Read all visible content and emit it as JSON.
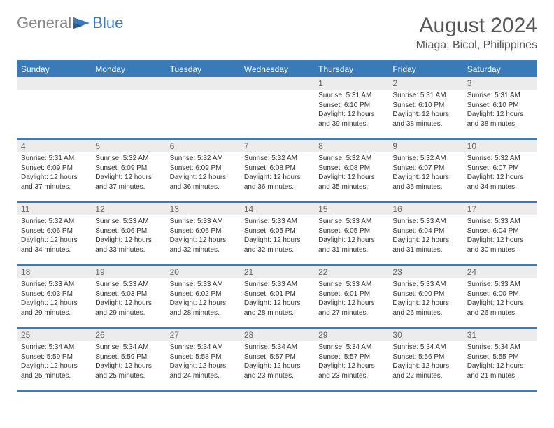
{
  "logo": {
    "gray": "General",
    "blue": "Blue"
  },
  "title": "August 2024",
  "location": "Miaga, Bicol, Philippines",
  "colors": {
    "accent": "#3a7ab8",
    "header_bg": "#3a7ab8",
    "daynum_bg": "#ececec"
  },
  "day_headers": [
    "Sunday",
    "Monday",
    "Tuesday",
    "Wednesday",
    "Thursday",
    "Friday",
    "Saturday"
  ],
  "weeks": [
    [
      null,
      null,
      null,
      null,
      {
        "n": "1",
        "sr": "Sunrise: 5:31 AM",
        "ss": "Sunset: 6:10 PM",
        "d1": "Daylight: 12 hours",
        "d2": "and 39 minutes."
      },
      {
        "n": "2",
        "sr": "Sunrise: 5:31 AM",
        "ss": "Sunset: 6:10 PM",
        "d1": "Daylight: 12 hours",
        "d2": "and 38 minutes."
      },
      {
        "n": "3",
        "sr": "Sunrise: 5:31 AM",
        "ss": "Sunset: 6:10 PM",
        "d1": "Daylight: 12 hours",
        "d2": "and 38 minutes."
      }
    ],
    [
      {
        "n": "4",
        "sr": "Sunrise: 5:31 AM",
        "ss": "Sunset: 6:09 PM",
        "d1": "Daylight: 12 hours",
        "d2": "and 37 minutes."
      },
      {
        "n": "5",
        "sr": "Sunrise: 5:32 AM",
        "ss": "Sunset: 6:09 PM",
        "d1": "Daylight: 12 hours",
        "d2": "and 37 minutes."
      },
      {
        "n": "6",
        "sr": "Sunrise: 5:32 AM",
        "ss": "Sunset: 6:09 PM",
        "d1": "Daylight: 12 hours",
        "d2": "and 36 minutes."
      },
      {
        "n": "7",
        "sr": "Sunrise: 5:32 AM",
        "ss": "Sunset: 6:08 PM",
        "d1": "Daylight: 12 hours",
        "d2": "and 36 minutes."
      },
      {
        "n": "8",
        "sr": "Sunrise: 5:32 AM",
        "ss": "Sunset: 6:08 PM",
        "d1": "Daylight: 12 hours",
        "d2": "and 35 minutes."
      },
      {
        "n": "9",
        "sr": "Sunrise: 5:32 AM",
        "ss": "Sunset: 6:07 PM",
        "d1": "Daylight: 12 hours",
        "d2": "and 35 minutes."
      },
      {
        "n": "10",
        "sr": "Sunrise: 5:32 AM",
        "ss": "Sunset: 6:07 PM",
        "d1": "Daylight: 12 hours",
        "d2": "and 34 minutes."
      }
    ],
    [
      {
        "n": "11",
        "sr": "Sunrise: 5:32 AM",
        "ss": "Sunset: 6:06 PM",
        "d1": "Daylight: 12 hours",
        "d2": "and 34 minutes."
      },
      {
        "n": "12",
        "sr": "Sunrise: 5:33 AM",
        "ss": "Sunset: 6:06 PM",
        "d1": "Daylight: 12 hours",
        "d2": "and 33 minutes."
      },
      {
        "n": "13",
        "sr": "Sunrise: 5:33 AM",
        "ss": "Sunset: 6:06 PM",
        "d1": "Daylight: 12 hours",
        "d2": "and 32 minutes."
      },
      {
        "n": "14",
        "sr": "Sunrise: 5:33 AM",
        "ss": "Sunset: 6:05 PM",
        "d1": "Daylight: 12 hours",
        "d2": "and 32 minutes."
      },
      {
        "n": "15",
        "sr": "Sunrise: 5:33 AM",
        "ss": "Sunset: 6:05 PM",
        "d1": "Daylight: 12 hours",
        "d2": "and 31 minutes."
      },
      {
        "n": "16",
        "sr": "Sunrise: 5:33 AM",
        "ss": "Sunset: 6:04 PM",
        "d1": "Daylight: 12 hours",
        "d2": "and 31 minutes."
      },
      {
        "n": "17",
        "sr": "Sunrise: 5:33 AM",
        "ss": "Sunset: 6:04 PM",
        "d1": "Daylight: 12 hours",
        "d2": "and 30 minutes."
      }
    ],
    [
      {
        "n": "18",
        "sr": "Sunrise: 5:33 AM",
        "ss": "Sunset: 6:03 PM",
        "d1": "Daylight: 12 hours",
        "d2": "and 29 minutes."
      },
      {
        "n": "19",
        "sr": "Sunrise: 5:33 AM",
        "ss": "Sunset: 6:03 PM",
        "d1": "Daylight: 12 hours",
        "d2": "and 29 minutes."
      },
      {
        "n": "20",
        "sr": "Sunrise: 5:33 AM",
        "ss": "Sunset: 6:02 PM",
        "d1": "Daylight: 12 hours",
        "d2": "and 28 minutes."
      },
      {
        "n": "21",
        "sr": "Sunrise: 5:33 AM",
        "ss": "Sunset: 6:01 PM",
        "d1": "Daylight: 12 hours",
        "d2": "and 28 minutes."
      },
      {
        "n": "22",
        "sr": "Sunrise: 5:33 AM",
        "ss": "Sunset: 6:01 PM",
        "d1": "Daylight: 12 hours",
        "d2": "and 27 minutes."
      },
      {
        "n": "23",
        "sr": "Sunrise: 5:33 AM",
        "ss": "Sunset: 6:00 PM",
        "d1": "Daylight: 12 hours",
        "d2": "and 26 minutes."
      },
      {
        "n": "24",
        "sr": "Sunrise: 5:33 AM",
        "ss": "Sunset: 6:00 PM",
        "d1": "Daylight: 12 hours",
        "d2": "and 26 minutes."
      }
    ],
    [
      {
        "n": "25",
        "sr": "Sunrise: 5:34 AM",
        "ss": "Sunset: 5:59 PM",
        "d1": "Daylight: 12 hours",
        "d2": "and 25 minutes."
      },
      {
        "n": "26",
        "sr": "Sunrise: 5:34 AM",
        "ss": "Sunset: 5:59 PM",
        "d1": "Daylight: 12 hours",
        "d2": "and 25 minutes."
      },
      {
        "n": "27",
        "sr": "Sunrise: 5:34 AM",
        "ss": "Sunset: 5:58 PM",
        "d1": "Daylight: 12 hours",
        "d2": "and 24 minutes."
      },
      {
        "n": "28",
        "sr": "Sunrise: 5:34 AM",
        "ss": "Sunset: 5:57 PM",
        "d1": "Daylight: 12 hours",
        "d2": "and 23 minutes."
      },
      {
        "n": "29",
        "sr": "Sunrise: 5:34 AM",
        "ss": "Sunset: 5:57 PM",
        "d1": "Daylight: 12 hours",
        "d2": "and 23 minutes."
      },
      {
        "n": "30",
        "sr": "Sunrise: 5:34 AM",
        "ss": "Sunset: 5:56 PM",
        "d1": "Daylight: 12 hours",
        "d2": "and 22 minutes."
      },
      {
        "n": "31",
        "sr": "Sunrise: 5:34 AM",
        "ss": "Sunset: 5:55 PM",
        "d1": "Daylight: 12 hours",
        "d2": "and 21 minutes."
      }
    ]
  ]
}
